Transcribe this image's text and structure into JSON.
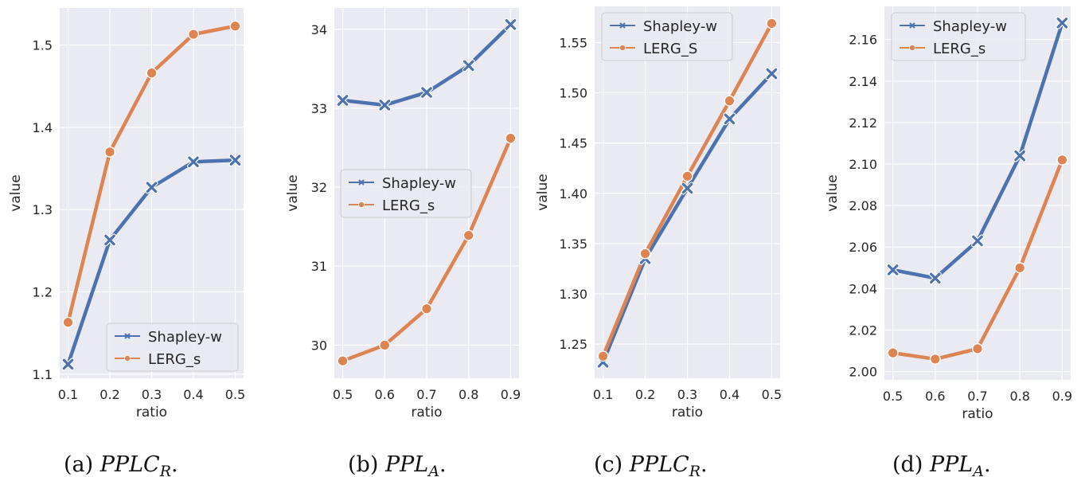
{
  "colors": {
    "shapley": "#4c72b0",
    "lerg": "#dd8452",
    "panel_bg": "#eaeaf2",
    "grid": "#ffffff"
  },
  "chart_data": [
    {
      "type": "line",
      "caption": {
        "prefix": "(a) ",
        "main": "PPLC",
        "sub": "R",
        "suffix": "."
      },
      "xlabel": "ratio",
      "ylabel": "value",
      "x": [
        0.1,
        0.2,
        0.3,
        0.4,
        0.5
      ],
      "x_ticks": [
        "0.1",
        "0.2",
        "0.3",
        "0.4",
        "0.5"
      ],
      "y_ticks": [
        "1.1",
        "1.2",
        "1.3",
        "1.4",
        "1.5"
      ],
      "xlim": [
        0.08,
        0.52
      ],
      "ylim": [
        1.095,
        1.545
      ],
      "legend_position": "lower-right",
      "series": [
        {
          "name": "Shapley-w",
          "marker": "x",
          "values": [
            1.112,
            1.263,
            1.327,
            1.358,
            1.36
          ]
        },
        {
          "name": "LERG_s",
          "marker": "o",
          "values": [
            1.163,
            1.37,
            1.466,
            1.513,
            1.523
          ]
        }
      ]
    },
    {
      "type": "line",
      "caption": {
        "prefix": "(b) ",
        "main": "PPL",
        "sub": "A",
        "suffix": "."
      },
      "xlabel": "ratio",
      "ylabel": "value",
      "x": [
        0.5,
        0.6,
        0.7,
        0.8,
        0.9
      ],
      "x_ticks": [
        "0.5",
        "0.6",
        "0.7",
        "0.8",
        "0.9"
      ],
      "y_ticks": [
        "30",
        "31",
        "32",
        "33",
        "34"
      ],
      "xlim": [
        0.48,
        0.92
      ],
      "ylim": [
        29.58,
        34.27
      ],
      "legend_position": "center-left",
      "series": [
        {
          "name": "Shapley-w",
          "marker": "x",
          "values": [
            33.1,
            33.04,
            33.2,
            33.54,
            34.06
          ]
        },
        {
          "name": "LERG_s",
          "marker": "o",
          "values": [
            29.8,
            30.0,
            30.46,
            31.39,
            32.62
          ]
        }
      ]
    },
    {
      "type": "line",
      "caption": {
        "prefix": "(c) ",
        "main": "PPLC",
        "sub": "R",
        "suffix": "."
      },
      "xlabel": "ratio",
      "ylabel": "value",
      "x": [
        0.1,
        0.2,
        0.3,
        0.4,
        0.5
      ],
      "x_ticks": [
        "0.1",
        "0.2",
        "0.3",
        "0.4",
        "0.5"
      ],
      "y_ticks": [
        "1.25",
        "1.30",
        "1.35",
        "1.40",
        "1.45",
        "1.50",
        "1.55"
      ],
      "xlim": [
        0.08,
        0.52
      ],
      "ylim": [
        1.216,
        1.586
      ],
      "legend_position": "top-left",
      "series": [
        {
          "name": "Shapley-w",
          "marker": "x",
          "values": [
            1.232,
            1.335,
            1.405,
            1.474,
            1.519
          ]
        },
        {
          "name": "LERG_S",
          "marker": "o",
          "values": [
            1.238,
            1.34,
            1.417,
            1.492,
            1.569
          ]
        }
      ]
    },
    {
      "type": "line",
      "caption": {
        "prefix": "(d) ",
        "main": "PPL",
        "sub": "A",
        "suffix": "."
      },
      "xlabel": "ratio",
      "ylabel": "value",
      "x": [
        0.5,
        0.6,
        0.7,
        0.8,
        0.9
      ],
      "x_ticks": [
        "0.5",
        "0.6",
        "0.7",
        "0.8",
        "0.9"
      ],
      "y_ticks": [
        "2.00",
        "2.02",
        "2.04",
        "2.06",
        "2.08",
        "2.10",
        "2.12",
        "2.14",
        "2.16"
      ],
      "xlim": [
        0.48,
        0.92
      ],
      "ylim": [
        1.996,
        2.176
      ],
      "legend_position": "top-left",
      "series": [
        {
          "name": "Shapley-w",
          "marker": "x",
          "values": [
            2.049,
            2.045,
            2.063,
            2.104,
            2.168
          ]
        },
        {
          "name": "LERG_s",
          "marker": "o",
          "values": [
            2.009,
            2.006,
            2.011,
            2.05,
            2.102
          ]
        }
      ]
    }
  ]
}
